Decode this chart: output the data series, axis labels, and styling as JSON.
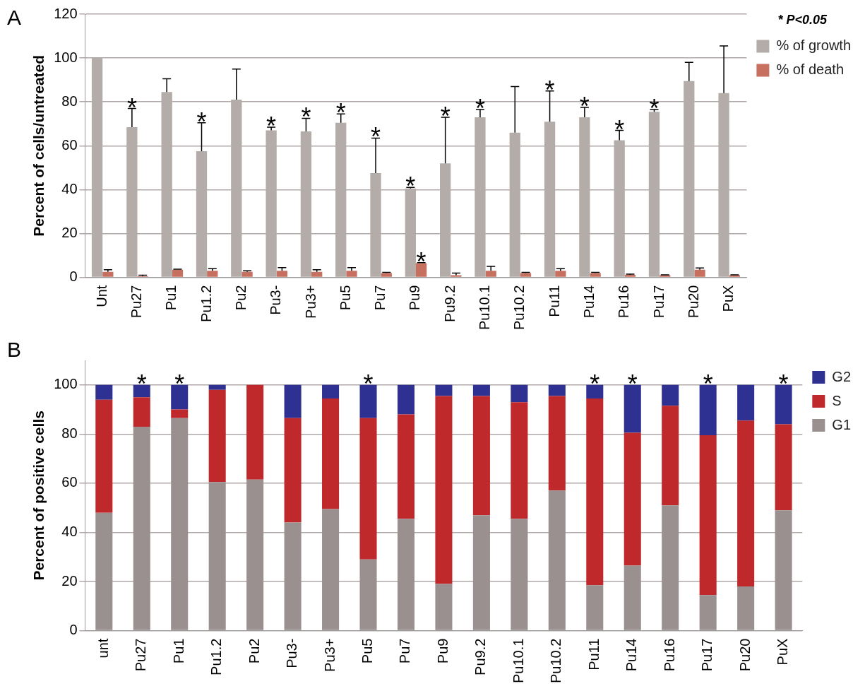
{
  "chart_data": [
    {
      "type": "bar",
      "ylabel": "Percent of cells/untreated",
      "legend_title": "* P<0.05",
      "legend": "top right",
      "grid": "y",
      "categories": [
        "Unt",
        "Pu27",
        "Pu1",
        "Pu1.2",
        "Pu2",
        "Pu3-",
        "Pu3+",
        "Pu5",
        "Pu7",
        "Pu9",
        "Pu9.2",
        "Pu10.1",
        "Pu10.2",
        "Pu11",
        "Pu14",
        "Pu16",
        "Pu17",
        "Pu20",
        "PuX"
      ],
      "ylim": [
        0,
        120
      ],
      "yticks": [
        0,
        20,
        40,
        60,
        80,
        100,
        120
      ],
      "series": [
        {
          "name": "% of growth",
          "color": "#b4aca8",
          "values": [
            100,
            68.5,
            84.5,
            57.5,
            81,
            67,
            66.5,
            70.5,
            47.5,
            40.5,
            52,
            73,
            66,
            71,
            73,
            62.5,
            75.5,
            89.5,
            84
          ],
          "errors": [
            null,
            [
              68.5,
              77
            ],
            [
              84.5,
              90.5
            ],
            [
              57.5,
              70.5
            ],
            [
              81,
              95
            ],
            [
              67,
              68.5
            ],
            [
              66.5,
              72.5
            ],
            [
              70.5,
              74.5
            ],
            [
              47.5,
              63.5
            ],
            [
              40.5,
              41
            ],
            [
              52,
              73
            ],
            [
              73,
              76.5
            ],
            [
              66,
              87
            ],
            [
              71,
              85
            ],
            [
              73,
              77.5
            ],
            [
              62.5,
              67
            ],
            [
              75.5,
              76.5
            ],
            [
              89.5,
              98
            ],
            [
              84,
              105.5
            ]
          ]
        },
        {
          "name": "% of death",
          "color": "#c87060",
          "values": [
            2.5,
            0.5,
            3.5,
            3,
            2.5,
            3,
            2.5,
            3,
            2,
            6.5,
            1,
            3,
            2,
            3,
            2,
            1.2,
            1,
            3.5,
            1
          ],
          "errors": [
            [
              2.5,
              3.5
            ],
            [
              0.5,
              1
            ],
            [
              3.5,
              3.7
            ],
            [
              3,
              4
            ],
            [
              2.5,
              3
            ],
            [
              3,
              4.5
            ],
            [
              2.5,
              3.5
            ],
            [
              3,
              4.5
            ],
            [
              2,
              2.3
            ],
            [
              6.5,
              6.7
            ],
            [
              1,
              2
            ],
            [
              3,
              5
            ],
            [
              2,
              2.3
            ],
            [
              3,
              4
            ],
            [
              2,
              2.3
            ],
            [
              1.2,
              1.5
            ],
            [
              1,
              1.2
            ],
            [
              3.5,
              4.3
            ],
            [
              1,
              1.2
            ]
          ]
        }
      ],
      "annotations": [
        "A",
        {
          "text": "*",
          "x": "Pu27",
          "y": 68.5
        },
        {
          "text": "*",
          "x": "Pu1.2",
          "y": 57.5
        },
        {
          "text": "*",
          "x": "Pu3-",
          "y": 67
        },
        {
          "text": "*",
          "x": "Pu3+",
          "y": 66.5
        },
        {
          "text": "*",
          "x": "Pu5",
          "y": 70.5
        },
        {
          "text": "*",
          "x": "Pu7",
          "y": 47.5
        },
        {
          "text": "*",
          "x": "Pu9",
          "y": 40.5
        },
        {
          "text": "*",
          "x": "Pu9",
          "y": 6.5
        },
        {
          "text": "*",
          "x": "Pu9.2",
          "y": 52
        },
        {
          "text": "*",
          "x": "Pu10.1",
          "y": 73
        },
        {
          "text": "*",
          "x": "Pu11",
          "y": 71
        },
        {
          "text": "*",
          "x": "Pu14",
          "y": 73
        },
        {
          "text": "*",
          "x": "Pu16",
          "y": 62.5
        },
        {
          "text": "*",
          "x": "Pu17",
          "y": 75.5
        }
      ]
    },
    {
      "type": "bar",
      "stacked": true,
      "ylabel": "Percent of positive cells",
      "legend": "top right",
      "grid": "y",
      "categories": [
        "unt",
        "Pu27",
        "Pu1",
        "Pu1.2",
        "Pu2",
        "Pu3-",
        "Pu3+",
        "Pu5",
        "Pu7",
        "Pu9",
        "Pu9.2",
        "Pu10.1",
        "Pu10.2",
        "Pu11",
        "Pu14",
        "Pu16",
        "Pu17",
        "Pu20",
        "PuX"
      ],
      "ylim": [
        0,
        110
      ],
      "yticks": [
        0,
        20,
        40,
        60,
        80,
        100
      ],
      "series": [
        {
          "name": "G1",
          "color": "#9a9090",
          "values": [
            48,
            83,
            86.5,
            60.5,
            61.5,
            44,
            49.5,
            29,
            45.5,
            19,
            47,
            45.5,
            57,
            18.5,
            26.5,
            51,
            14.5,
            18,
            49
          ]
        },
        {
          "name": "S",
          "color": "#c0292b",
          "values": [
            46,
            12,
            3.5,
            37.5,
            38.5,
            42.5,
            45,
            57.5,
            42.5,
            76.5,
            48.5,
            47.5,
            38.5,
            76,
            54,
            40.5,
            65,
            67.5,
            35
          ]
        },
        {
          "name": "G2",
          "color": "#2e3192",
          "values": [
            6,
            5,
            10,
            2,
            0,
            13.5,
            5.5,
            13.5,
            12,
            4.5,
            4.5,
            7,
            4.5,
            5.5,
            19.5,
            8.5,
            20.5,
            14.5,
            16
          ]
        }
      ],
      "annotations": [
        "B",
        {
          "text": "*",
          "x": "Pu27",
          "y": 100
        },
        {
          "text": "*",
          "x": "Pu1",
          "y": 100
        },
        {
          "text": "*",
          "x": "Pu5",
          "y": 100
        },
        {
          "text": "*",
          "x": "Pu11",
          "y": 100
        },
        {
          "text": "*",
          "x": "Pu14",
          "y": 100
        },
        {
          "text": "*",
          "x": "Pu17",
          "y": 100
        },
        {
          "text": "*",
          "x": "PuX",
          "y": 100
        }
      ]
    }
  ]
}
